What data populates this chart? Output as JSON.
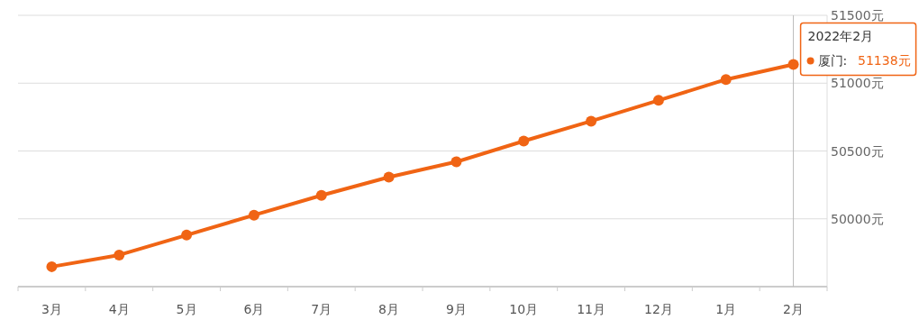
{
  "chart_data": {
    "type": "line",
    "categories": [
      "3月",
      "4月",
      "5月",
      "6月",
      "7月",
      "8月",
      "9月",
      "10月",
      "11月",
      "12月",
      "1月",
      "2月"
    ],
    "series": [
      {
        "name": "厦门:",
        "color": "#f06414",
        "values": [
          49647,
          49733,
          49880,
          50027,
          50173,
          50307,
          50420,
          50573,
          50720,
          50873,
          51027,
          51138
        ]
      }
    ],
    "ylim": [
      49500,
      51500
    ],
    "yticks": [
      {
        "value": 50000,
        "label": "50000元"
      },
      {
        "value": 50500,
        "label": "50500元"
      },
      {
        "value": 51000,
        "label": "51000元"
      },
      {
        "value": 51500,
        "label": "51500元"
      }
    ],
    "grid": "y",
    "legend": "top right",
    "marker": "circle",
    "line_style": "solid",
    "ref_lines": [
      {
        "axis": "x",
        "value": "2月",
        "color": "#bbbbbb"
      }
    ],
    "annotations": [
      {
        "text": "2022年2月",
        "x": "2月",
        "y": 51138
      },
      "51138元"
    ]
  }
}
